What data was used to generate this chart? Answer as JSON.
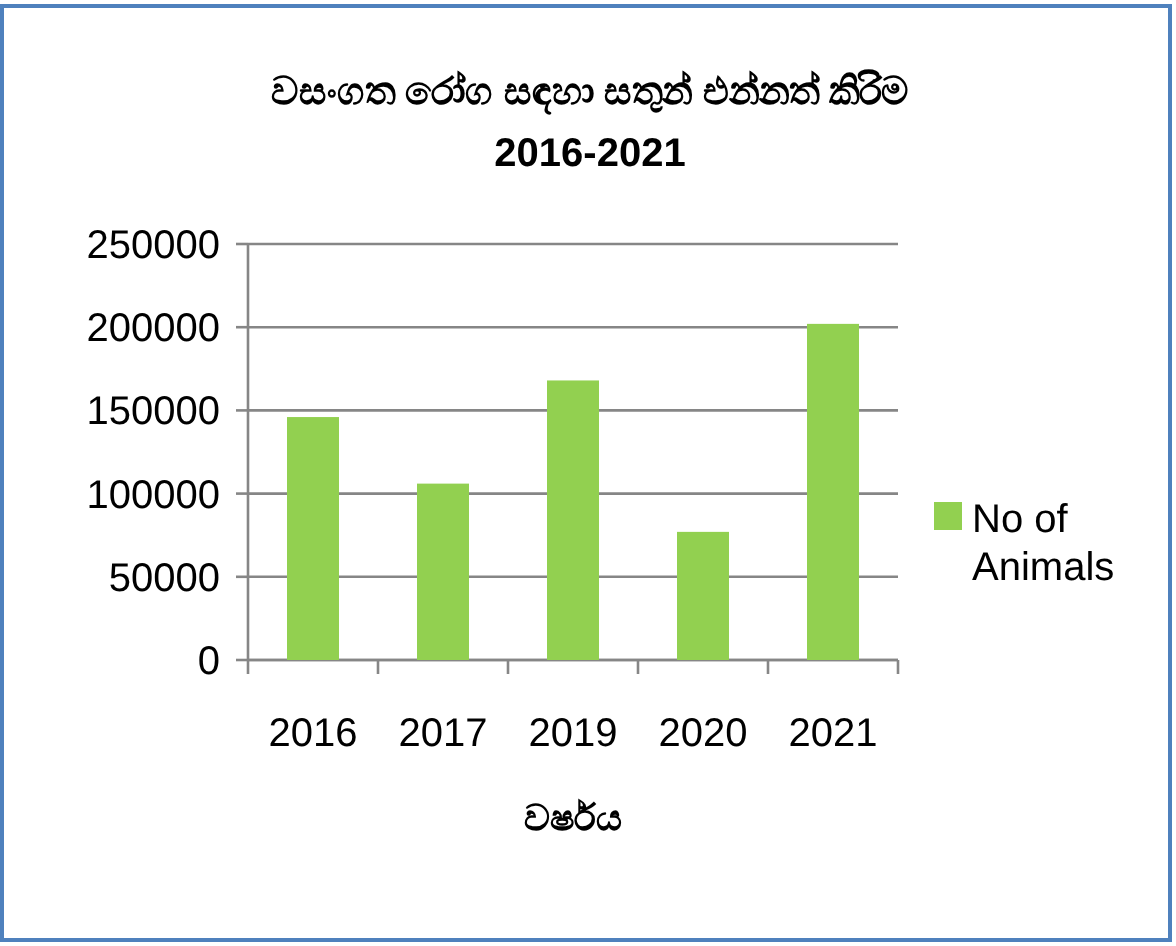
{
  "chart_data": {
    "type": "bar",
    "title": "වසංගත රෝග සඳහා සතුන් එන්නත් කිරිම",
    "subtitle": "2016-2021",
    "xlabel": "වර්ෂය",
    "categories": [
      "2016",
      "2017",
      "2019",
      "2020",
      "2021"
    ],
    "series": [
      {
        "name": "No of Animals",
        "color": "#92d050",
        "values": [
          146000,
          106000,
          168000,
          77000,
          202000
        ]
      }
    ],
    "ylim": [
      0,
      250000
    ],
    "yticks": [
      0,
      50000,
      100000,
      150000,
      200000,
      250000
    ],
    "grid": "y",
    "legend": "right"
  }
}
